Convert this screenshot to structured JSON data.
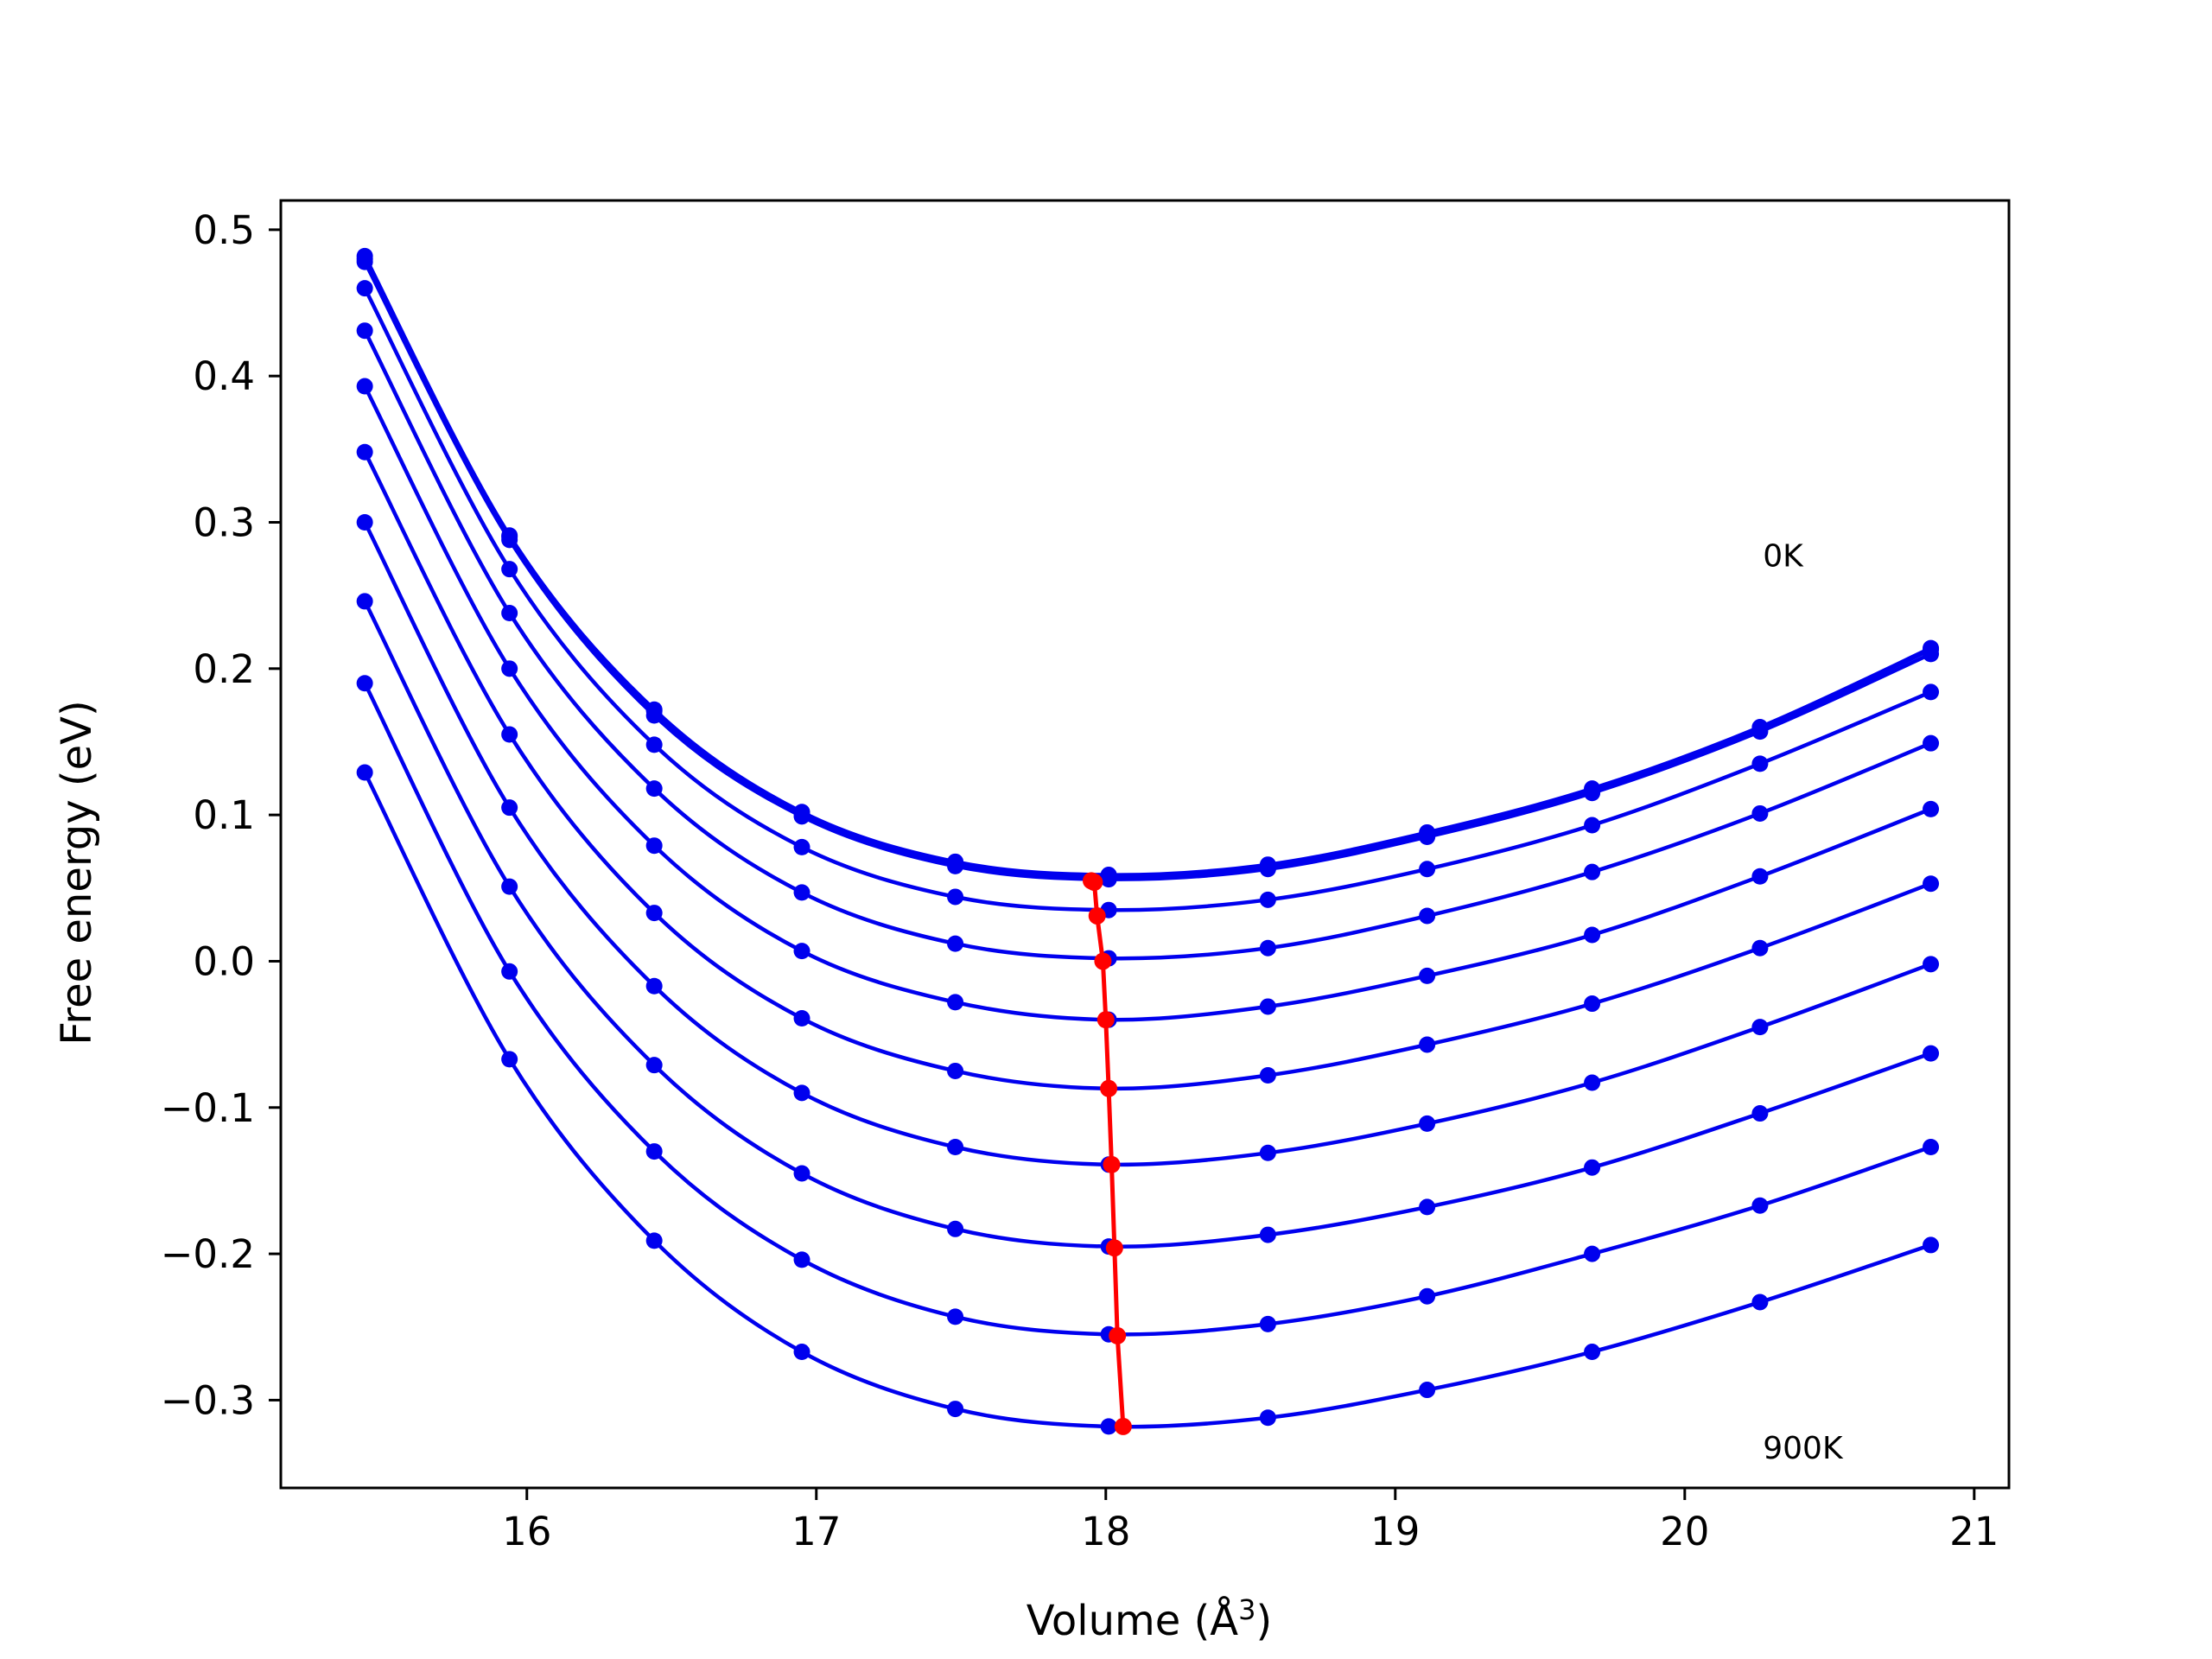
{
  "chart_data": {
    "type": "line",
    "title": "",
    "xlabel": "Volume (Å",
    "xlabel_sup": "3",
    "xlabel_end": ")",
    "ylabel": "Free energy (eV)",
    "xlim": [
      15.15,
      21.12
    ],
    "ylim": [
      -0.36,
      0.52
    ],
    "xticks": [
      16,
      17,
      18,
      19,
      20,
      21
    ],
    "yticks": [
      0.5,
      0.4,
      0.3,
      0.2,
      0.1,
      0.0,
      -0.1,
      -0.2,
      -0.3
    ],
    "ytick_labels": [
      "0.5",
      "0.4",
      "0.3",
      "0.2",
      "0.1",
      "0.0",
      "−0.1",
      "−0.2",
      "−0.3"
    ],
    "grid": false,
    "annotations": [
      {
        "text": "0K",
        "x": 20.27,
        "y": 0.27
      },
      {
        "text": "900K",
        "x": 20.27,
        "y": -0.34
      }
    ],
    "colors": {
      "isotherm": "#0000ee",
      "minimum": "#ff0000"
    },
    "x": [
      15.44,
      15.94,
      16.44,
      16.95,
      17.48,
      18.01,
      18.56,
      19.11,
      19.68,
      20.26,
      20.85
    ],
    "series": [
      {
        "values": [
          0.482,
          0.291,
          0.172,
          0.102,
          0.068,
          0.059,
          0.066,
          0.088,
          0.118,
          0.16,
          0.214
        ]
      },
      {
        "values": [
          0.48,
          0.29,
          0.171,
          0.101,
          0.067,
          0.058,
          0.065,
          0.087,
          0.117,
          0.159,
          0.213
        ]
      },
      {
        "values": [
          0.478,
          0.288,
          0.168,
          0.099,
          0.065,
          0.056,
          0.063,
          0.085,
          0.115,
          0.157,
          0.21
        ]
      },
      {
        "values": [
          0.46,
          0.268,
          0.148,
          0.078,
          0.044,
          0.035,
          0.042,
          0.063,
          0.093,
          0.135,
          0.184
        ]
      },
      {
        "values": [
          0.431,
          0.238,
          0.118,
          0.047,
          0.012,
          0.002,
          0.009,
          0.031,
          0.061,
          0.101,
          0.149
        ]
      },
      {
        "values": [
          0.393,
          0.2,
          0.079,
          0.007,
          -0.028,
          -0.04,
          -0.031,
          -0.01,
          0.018,
          0.058,
          0.104
        ]
      },
      {
        "values": [
          0.348,
          0.155,
          0.033,
          -0.039,
          -0.075,
          -0.087,
          -0.078,
          -0.057,
          -0.029,
          0.009,
          0.053
        ]
      },
      {
        "values": [
          0.3,
          0.105,
          -0.017,
          -0.09,
          -0.127,
          -0.139,
          -0.131,
          -0.111,
          -0.083,
          -0.045,
          -0.002
        ]
      },
      {
        "values": [
          0.246,
          0.051,
          -0.071,
          -0.145,
          -0.183,
          -0.195,
          -0.187,
          -0.168,
          -0.141,
          -0.104,
          -0.063
        ]
      },
      {
        "values": [
          0.19,
          -0.007,
          -0.13,
          -0.204,
          -0.243,
          -0.255,
          -0.248,
          -0.229,
          -0.2,
          -0.167,
          -0.127
        ]
      },
      {
        "values": [
          0.129,
          -0.067,
          -0.191,
          -0.267,
          -0.306,
          -0.318,
          -0.312,
          -0.293,
          -0.267,
          -0.233,
          -0.194
        ]
      }
    ],
    "minima": {
      "x": [
        17.95,
        17.96,
        17.97,
        17.99,
        18.0,
        18.01,
        18.02,
        18.03,
        18.04,
        18.06
      ],
      "y": [
        0.055,
        0.054,
        0.031,
        0.0,
        -0.04,
        -0.087,
        -0.139,
        -0.196,
        -0.256,
        -0.318
      ]
    }
  }
}
